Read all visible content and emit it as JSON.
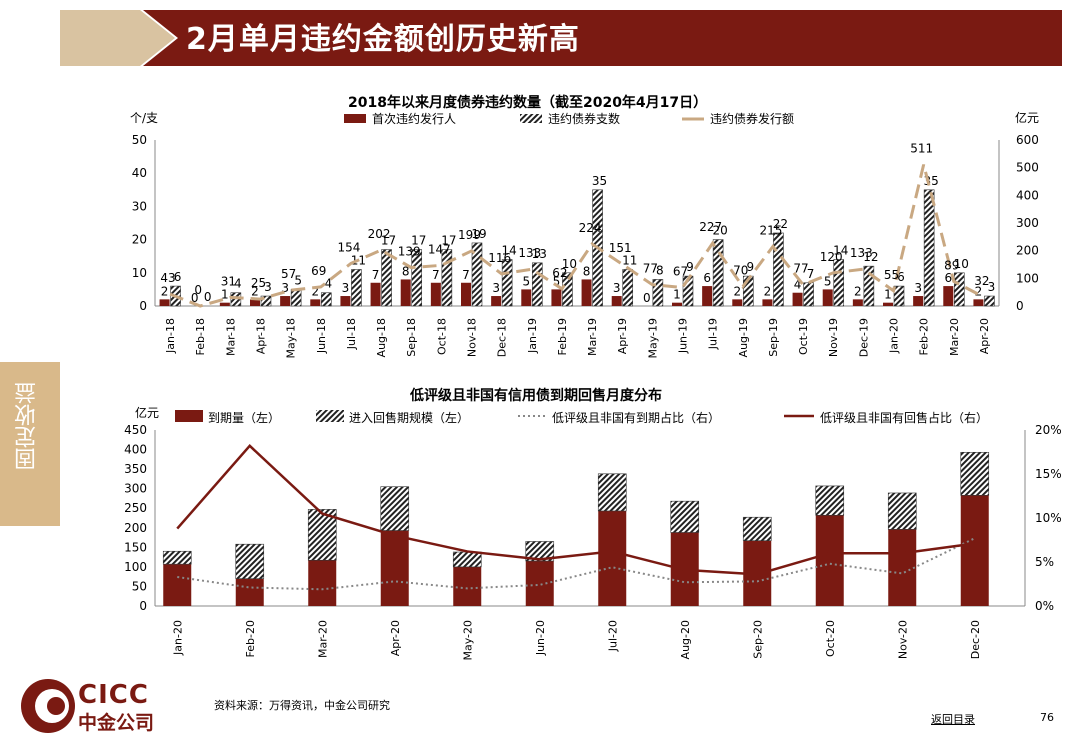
{
  "header": {
    "title": "2月单月违约金额创历史新高"
  },
  "side_tab": {
    "label": "固定收益"
  },
  "chart1": {
    "title": "2018年以来月度债券违约数量（截至2020年4月17日）",
    "left_unit": "个/支",
    "right_unit": "亿元",
    "legend": [
      "首次违约发行人",
      "违约债券支数",
      "违约债券发行额"
    ]
  },
  "chart2": {
    "title": "低评级且非国有信用债到期回售月度分布",
    "left_unit": "亿元",
    "legend": [
      "到期量（左）",
      "进入回售期规模（左）",
      "低评级且非国有到期占比（右）",
      "低评级且非国有回售占比（右）"
    ]
  },
  "chart_data": [
    {
      "type": "bar",
      "categories": [
        "Jan-18",
        "Feb-18",
        "Mar-18",
        "Apr-18",
        "May-18",
        "Jun-18",
        "Jul-18",
        "Aug-18",
        "Sep-18",
        "Oct-18",
        "Nov-18",
        "Dec-18",
        "Jan-19",
        "Feb-19",
        "Mar-19",
        "Apr-19",
        "May-19",
        "Jun-19",
        "Jul-19",
        "Aug-19",
        "Sep-19",
        "Oct-19",
        "Nov-19",
        "Dec-19",
        "Jan-20",
        "Feb-20",
        "Mar-20",
        "Apr-20"
      ],
      "series": [
        {
          "name": "首次违约发行人",
          "axis": "left",
          "type": "bar",
          "values": [
            2,
            0,
            1,
            2,
            3,
            2,
            3,
            7,
            8,
            7,
            7,
            3,
            5,
            5,
            8,
            3,
            0,
            1,
            6,
            2,
            2,
            4,
            5,
            2,
            1,
            3,
            6,
            2
          ]
        },
        {
          "name": "违约债券支数",
          "axis": "left",
          "type": "bar",
          "values": [
            6,
            0,
            4,
            3,
            5,
            4,
            11,
            17,
            17,
            17,
            19,
            14,
            13,
            10,
            35,
            11,
            8,
            9,
            20,
            9,
            22,
            7,
            14,
            12,
            6,
            35,
            10,
            3
          ]
        },
        {
          "name": "违约债券发行额",
          "axis": "right",
          "type": "line",
          "values": [
            43,
            0,
            31,
            25,
            57,
            69,
            154,
            202,
            139,
            147,
            199,
            116,
            133,
            62,
            224,
            151,
            77,
            67,
            227,
            70,
            215,
            77,
            120,
            133,
            55,
            511,
            89,
            32
          ]
        }
      ],
      "ylim_left": [
        0,
        50
      ],
      "ylim_right": [
        0,
        600
      ],
      "yticks_left": [
        0,
        10,
        20,
        30,
        40,
        50
      ],
      "yticks_right": [
        0,
        100,
        200,
        300,
        400,
        500,
        600
      ]
    },
    {
      "type": "bar",
      "categories": [
        "Jan-20",
        "Feb-20",
        "Mar-20",
        "Apr-20",
        "May-20",
        "Jun-20",
        "Jul-20",
        "Aug-20",
        "Sep-20",
        "Oct-20",
        "Nov-20",
        "Dec-20"
      ],
      "series": [
        {
          "name": "到期量（左）",
          "axis": "left",
          "type": "bar",
          "stack": "total",
          "values": [
            107,
            70,
            117,
            193,
            100,
            115,
            243,
            188,
            167,
            232,
            196,
            283
          ]
        },
        {
          "name": "进入回售期规模（左）",
          "axis": "left",
          "type": "bar",
          "stack": "total",
          "values": [
            33,
            88,
            130,
            112,
            38,
            50,
            95,
            80,
            60,
            75,
            93,
            110
          ]
        },
        {
          "name": "低评级且非国有到期占比（右）",
          "axis": "right",
          "type": "line",
          "style": "dotted",
          "values": [
            0.033,
            0.021,
            0.019,
            0.028,
            0.02,
            0.024,
            0.044,
            0.027,
            0.028,
            0.048,
            0.037,
            0.077
          ]
        },
        {
          "name": "低评级且非国有回售占比（右）",
          "axis": "right",
          "type": "line",
          "values": [
            0.088,
            0.182,
            0.105,
            0.08,
            0.062,
            0.053,
            0.062,
            0.041,
            0.036,
            0.06,
            0.06,
            0.071
          ]
        }
      ],
      "ylim_left": [
        0,
        450
      ],
      "ylim_right": [
        0,
        0.2
      ],
      "yticks_left": [
        0,
        50,
        100,
        150,
        200,
        250,
        300,
        350,
        400,
        450
      ],
      "yticks_right": [
        "0%",
        "5%",
        "10%",
        "15%",
        "20%"
      ]
    }
  ],
  "footer": {
    "source": "资料来源：万得资讯，中金公司研究",
    "back_link": "返回目录",
    "page": "76",
    "logo_en": "CICC",
    "logo_zh": "中金公司"
  },
  "colors": {
    "brand": "#7a1a12",
    "bar_dark": "#7a1a12",
    "line_tan": "#c9a882",
    "tab": "#d9b98a"
  }
}
